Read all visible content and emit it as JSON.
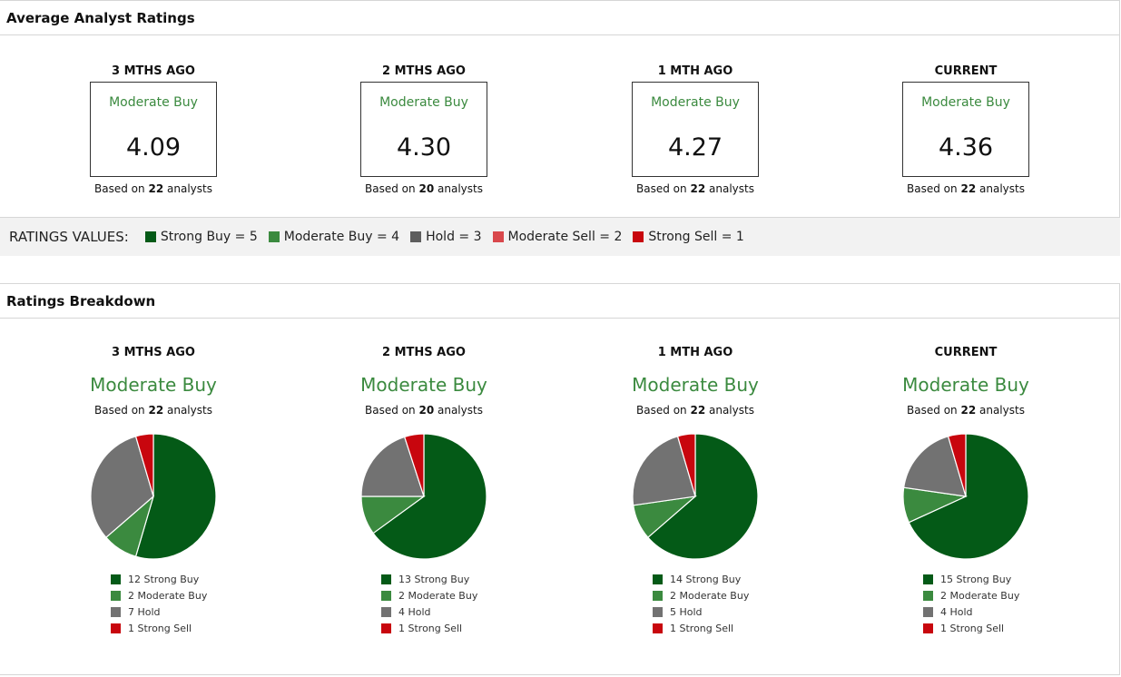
{
  "average": {
    "title": "Average Analyst Ratings",
    "columns": [
      {
        "period": "3 MTHS AGO",
        "label": "Moderate Buy",
        "value": "4.09",
        "based_prefix": "Based on",
        "analysts": "22",
        "based_suffix": "analysts"
      },
      {
        "period": "2 MTHS AGO",
        "label": "Moderate Buy",
        "value": "4.30",
        "based_prefix": "Based on",
        "analysts": "20",
        "based_suffix": "analysts"
      },
      {
        "period": "1 MTH AGO",
        "label": "Moderate Buy",
        "value": "4.27",
        "based_prefix": "Based on",
        "analysts": "22",
        "based_suffix": "analysts"
      },
      {
        "period": "CURRENT",
        "label": "Moderate Buy",
        "value": "4.36",
        "based_prefix": "Based on",
        "analysts": "22",
        "based_suffix": "analysts"
      }
    ]
  },
  "ratings_values": {
    "label": "RATINGS VALUES:",
    "items": [
      {
        "text": "Strong Buy = 5",
        "color": "#045a17"
      },
      {
        "text": "Moderate Buy = 4",
        "color": "#3b8a3f"
      },
      {
        "text": "Hold = 3",
        "color": "#5e5e5e"
      },
      {
        "text": "Moderate Sell = 2",
        "color": "#d9484c"
      },
      {
        "text": "Strong Sell = 1",
        "color": "#c8060e"
      }
    ]
  },
  "breakdown": {
    "title": "Ratings Breakdown"
  },
  "colors": {
    "strong_buy": "#045a17",
    "moderate_buy": "#3b8a3f",
    "hold": "#727272",
    "strong_sell": "#c8060e",
    "accent_label": "#3b8a3f"
  },
  "chart_data": [
    {
      "type": "pie",
      "title": "3 MTHS AGO",
      "subtitle": "Moderate Buy",
      "based_prefix": "Based on",
      "analysts": "22",
      "based_suffix": "analysts",
      "slices": [
        {
          "count": 12,
          "name": "Strong Buy",
          "label": "12 Strong Buy",
          "color": "#045a17"
        },
        {
          "count": 2,
          "name": "Moderate Buy",
          "label": "2 Moderate Buy",
          "color": "#3b8a3f"
        },
        {
          "count": 7,
          "name": "Hold",
          "label": "7 Hold",
          "color": "#727272"
        },
        {
          "count": 1,
          "name": "Strong Sell",
          "label": "1 Strong Sell",
          "color": "#c8060e"
        }
      ]
    },
    {
      "type": "pie",
      "title": "2 MTHS AGO",
      "subtitle": "Moderate Buy",
      "based_prefix": "Based on",
      "analysts": "20",
      "based_suffix": "analysts",
      "slices": [
        {
          "count": 13,
          "name": "Strong Buy",
          "label": "13 Strong Buy",
          "color": "#045a17"
        },
        {
          "count": 2,
          "name": "Moderate Buy",
          "label": "2 Moderate Buy",
          "color": "#3b8a3f"
        },
        {
          "count": 4,
          "name": "Hold",
          "label": "4 Hold",
          "color": "#727272"
        },
        {
          "count": 1,
          "name": "Strong Sell",
          "label": "1 Strong Sell",
          "color": "#c8060e"
        }
      ]
    },
    {
      "type": "pie",
      "title": "1 MTH AGO",
      "subtitle": "Moderate Buy",
      "based_prefix": "Based on",
      "analysts": "22",
      "based_suffix": "analysts",
      "slices": [
        {
          "count": 14,
          "name": "Strong Buy",
          "label": "14 Strong Buy",
          "color": "#045a17"
        },
        {
          "count": 2,
          "name": "Moderate Buy",
          "label": "2 Moderate Buy",
          "color": "#3b8a3f"
        },
        {
          "count": 5,
          "name": "Hold",
          "label": "5 Hold",
          "color": "#727272"
        },
        {
          "count": 1,
          "name": "Strong Sell",
          "label": "1 Strong Sell",
          "color": "#c8060e"
        }
      ]
    },
    {
      "type": "pie",
      "title": "CURRENT",
      "subtitle": "Moderate Buy",
      "based_prefix": "Based on",
      "analysts": "22",
      "based_suffix": "analysts",
      "slices": [
        {
          "count": 15,
          "name": "Strong Buy",
          "label": "15 Strong Buy",
          "color": "#045a17"
        },
        {
          "count": 2,
          "name": "Moderate Buy",
          "label": "2 Moderate Buy",
          "color": "#3b8a3f"
        },
        {
          "count": 4,
          "name": "Hold",
          "label": "4 Hold",
          "color": "#727272"
        },
        {
          "count": 1,
          "name": "Strong Sell",
          "label": "1 Strong Sell",
          "color": "#c8060e"
        }
      ]
    }
  ]
}
